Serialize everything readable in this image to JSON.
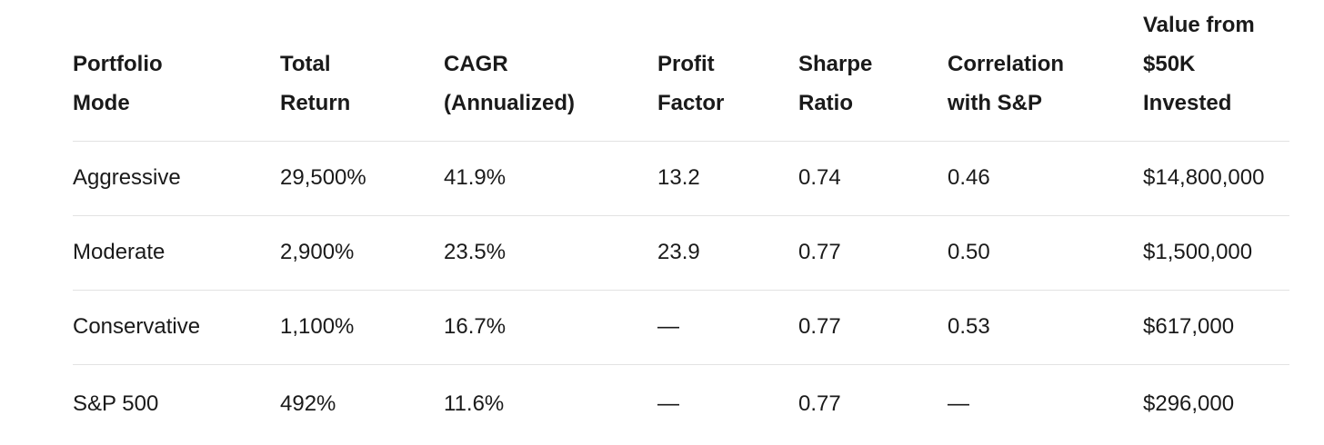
{
  "table": {
    "headers": [
      "Portfolio\nMode",
      "Total\nReturn",
      "CAGR\n(Annualized)",
      "Profit\nFactor",
      "Sharpe\nRatio",
      "Correlation\nwith S&P",
      "Value from\n$50K\nInvested"
    ],
    "rows": [
      {
        "cells": [
          "Aggressive",
          "29,500%",
          "41.9%",
          "13.2",
          "0.74",
          "0.46",
          "$14,800,000"
        ]
      },
      {
        "cells": [
          "Moderate",
          "2,900%",
          "23.5%",
          "23.9",
          "0.77",
          "0.50",
          "$1,500,000"
        ]
      },
      {
        "cells": [
          "Conservative",
          "1,100%",
          "16.7%",
          "—",
          "0.77",
          "0.53",
          "$617,000"
        ]
      },
      {
        "cells": [
          "S&P 500",
          "492%",
          "11.6%",
          "—",
          "0.77",
          "—",
          "$296,000"
        ]
      }
    ]
  },
  "colors": {
    "background": "#ffffff",
    "text": "#1a1a1a",
    "divider": "#e2e2e2"
  }
}
